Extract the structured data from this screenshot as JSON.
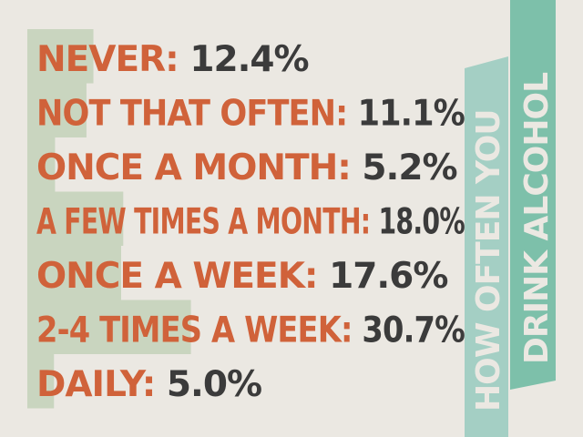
{
  "chart_data": {
    "type": "bar",
    "title_lines": [
      "HOW OFTEN YOU",
      "DRINK ALCOHOL"
    ],
    "categories": [
      "NEVER:",
      "NOT THAT OFTEN:",
      "ONCE A MONTH:",
      "A FEW TIMES A MONTH:",
      "ONCE A WEEK:",
      "2-4 TIMES A WEEK:",
      "DAILY:"
    ],
    "values": [
      12.4,
      11.1,
      5.2,
      18.0,
      17.6,
      30.7,
      5.0
    ],
    "value_labels": [
      "12.4%",
      "11.1%",
      "5.2%",
      "18.0%",
      "17.6%",
      "30.7%",
      "5.0%"
    ],
    "unit": "%"
  },
  "colors": {
    "background": "#ebe8e2",
    "label": "#d0623a",
    "value": "#3b3b3b",
    "bar": "#c9d5bf",
    "banner_light": "#a4cfc4",
    "banner_dark": "#7dc0aa"
  }
}
